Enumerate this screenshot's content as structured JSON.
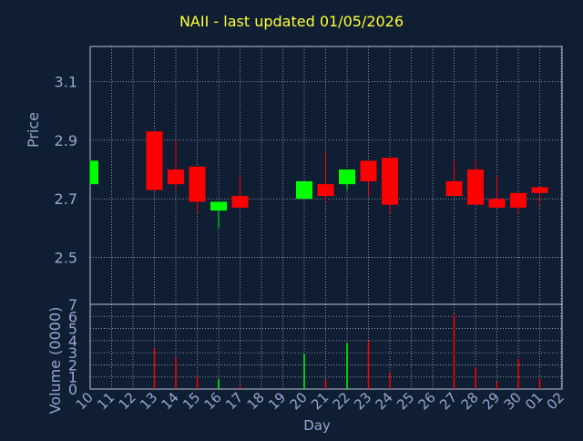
{
  "page": {
    "title": "NAII - last updated 01/05/2026"
  },
  "colors": {
    "background": "#0f1e33",
    "plot_border": "#b8c4d6",
    "grid": "#aab4c4",
    "title": "#ffff33",
    "axis_text": "#93a9c8",
    "up": "#00ff00",
    "down": "#ff0000"
  },
  "chart_data": [
    {
      "type": "candlestick",
      "ylabel": "Price",
      "ylim": [
        2.34,
        3.22
      ],
      "y_ticks": [
        2.5,
        2.7,
        2.9,
        3.1
      ],
      "y_tick_labels": [
        "2.5",
        "2.7",
        "2.9",
        "3.1"
      ],
      "grid": true,
      "points": [
        {
          "x": "10",
          "open": 2.75,
          "close": 2.83,
          "high": 2.83,
          "low": 2.75
        },
        {
          "x": "13",
          "open": 2.93,
          "close": 2.73,
          "high": 2.93,
          "low": 2.73
        },
        {
          "x": "14",
          "open": 2.8,
          "close": 2.75,
          "high": 2.9,
          "low": 2.73
        },
        {
          "x": "15",
          "open": 2.81,
          "close": 2.69,
          "high": 2.81,
          "low": 2.65
        },
        {
          "x": "16",
          "open": 2.66,
          "close": 2.69,
          "high": 2.69,
          "low": 2.6
        },
        {
          "x": "17",
          "open": 2.71,
          "close": 2.67,
          "high": 2.78,
          "low": 2.67
        },
        {
          "x": "20",
          "open": 2.7,
          "close": 2.76,
          "high": 2.76,
          "low": 2.7
        },
        {
          "x": "21",
          "open": 2.75,
          "close": 2.71,
          "high": 2.86,
          "low": 2.69
        },
        {
          "x": "22",
          "open": 2.75,
          "close": 2.8,
          "high": 2.8,
          "low": 2.73
        },
        {
          "x": "23",
          "open": 2.83,
          "close": 2.76,
          "high": 2.83,
          "low": 2.71
        },
        {
          "x": "24",
          "open": 2.84,
          "close": 2.68,
          "high": 2.84,
          "low": 2.65
        },
        {
          "x": "27",
          "open": 2.76,
          "close": 2.71,
          "high": 2.83,
          "low": 2.71
        },
        {
          "x": "28",
          "open": 2.8,
          "close": 2.68,
          "high": 2.83,
          "low": 2.68
        },
        {
          "x": "29",
          "open": 2.7,
          "close": 2.67,
          "high": 2.78,
          "low": 2.67
        },
        {
          "x": "30",
          "open": 2.72,
          "close": 2.67,
          "high": 2.72,
          "low": 2.65
        },
        {
          "x": "01",
          "open": 2.74,
          "close": 2.72,
          "high": 2.74,
          "low": 2.68
        }
      ]
    },
    {
      "type": "bar",
      "ylabel": "Volume (0000)",
      "xlabel": "Day",
      "ylim": [
        0,
        7
      ],
      "y_ticks": [
        0,
        1,
        2,
        3,
        4,
        5,
        6,
        7
      ],
      "y_tick_labels": [
        "0",
        "1",
        "2",
        "3",
        "4",
        "5",
        "6",
        "7"
      ],
      "categories": [
        "10",
        "11",
        "12",
        "13",
        "14",
        "15",
        "16",
        "17",
        "18",
        "19",
        "20",
        "21",
        "22",
        "23",
        "24",
        "25",
        "26",
        "27",
        "28",
        "29",
        "30",
        "01",
        "02"
      ],
      "grid": true,
      "bars": [
        {
          "x": "10",
          "value": 0.0,
          "dir": "up"
        },
        {
          "x": "13",
          "value": 3.4,
          "dir": "down"
        },
        {
          "x": "14",
          "value": 2.6,
          "dir": "down"
        },
        {
          "x": "15",
          "value": 1.0,
          "dir": "down"
        },
        {
          "x": "16",
          "value": 0.8,
          "dir": "up"
        },
        {
          "x": "17",
          "value": 0.3,
          "dir": "down"
        },
        {
          "x": "20",
          "value": 2.9,
          "dir": "up"
        },
        {
          "x": "21",
          "value": 0.8,
          "dir": "down"
        },
        {
          "x": "22",
          "value": 3.8,
          "dir": "up"
        },
        {
          "x": "23",
          "value": 4.0,
          "dir": "down"
        },
        {
          "x": "24",
          "value": 1.4,
          "dir": "down"
        },
        {
          "x": "27",
          "value": 6.2,
          "dir": "down"
        },
        {
          "x": "28",
          "value": 1.8,
          "dir": "down"
        },
        {
          "x": "29",
          "value": 0.6,
          "dir": "down"
        },
        {
          "x": "30",
          "value": 2.5,
          "dir": "down"
        },
        {
          "x": "01",
          "value": 0.9,
          "dir": "down"
        }
      ]
    }
  ]
}
